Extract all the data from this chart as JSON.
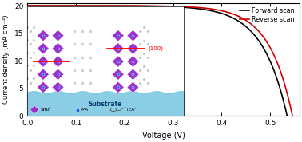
{
  "xlim": [
    0.0,
    0.56
  ],
  "ylim": [
    0.0,
    20.5
  ],
  "xlabel": "Voltage (V)",
  "ylabel": "Current density (mA cm⁻²)",
  "xticks": [
    0.0,
    0.1,
    0.2,
    0.3,
    0.4,
    0.5
  ],
  "yticks": [
    0,
    5,
    10,
    15,
    20
  ],
  "forward_color": "#000000",
  "reverse_color": "#cc0000",
  "legend_labels": [
    "Forward scan",
    "Reverse scan"
  ],
  "jsc": 20.0,
  "voc_forward": 0.535,
  "voc_reverse": 0.546,
  "background_color": "#ffffff",
  "inset_annotation": "(100)",
  "oct_color": "#9B30D0",
  "oct_edge": "#7B20B0",
  "center_color": "#1a6fd4",
  "spacer_color": "#aaaaaa",
  "substrate_color": "#7EC8E3"
}
